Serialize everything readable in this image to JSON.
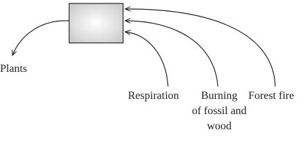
{
  "nodes": [
    {
      "label": "Plants"
    },
    {
      "label": "Respiration"
    },
    {
      "label": [
        "Burning",
        "of fossil and",
        "wood"
      ]
    },
    {
      "label": "Forest fire"
    }
  ]
}
